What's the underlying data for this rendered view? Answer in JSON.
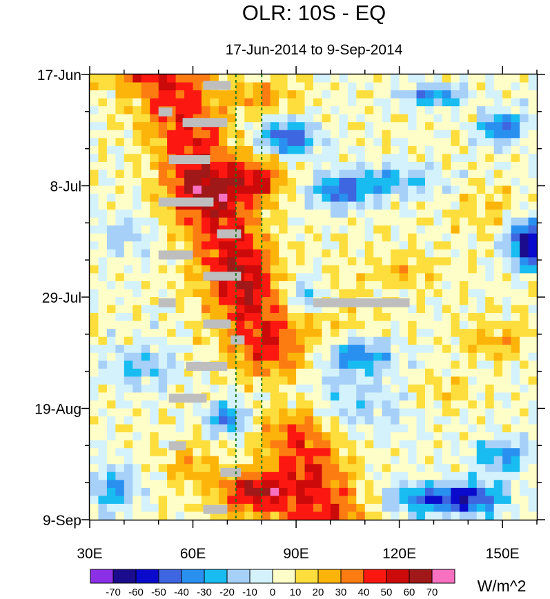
{
  "chart_data": {
    "type": "heatmap",
    "title": "OLR: 10S - EQ",
    "subtitle": "17-Jun-2014 to 9-Sep-2014",
    "x_axis": {
      "label": "",
      "range": [
        30,
        160
      ],
      "ticks": [
        30,
        60,
        90,
        120,
        150
      ],
      "tick_labels": [
        "30E",
        "60E",
        "90E",
        "120E",
        "150E"
      ],
      "minor_tick_step": 10
    },
    "y_axis": {
      "label": "",
      "range_days": [
        0,
        84
      ],
      "ticks": [
        0,
        21,
        42,
        63,
        84
      ],
      "tick_labels": [
        "17-Jun",
        "8-Jul",
        "29-Jul",
        "19-Aug",
        "9-Sep"
      ],
      "minor_tick_step_days": 7,
      "direction": "time increases downward"
    },
    "reference_lines_lon": [
      72.5,
      80
    ],
    "colorbar": {
      "units": "W/m^2",
      "boundaries": [
        -70,
        -60,
        -50,
        -40,
        -30,
        -20,
        -10,
        0,
        10,
        20,
        30,
        40,
        50,
        60,
        70
      ],
      "labels": [
        "-70",
        "-60",
        "-50",
        "-40",
        "-30",
        "-20",
        "-10",
        "0",
        "10",
        "20",
        "30",
        "40",
        "50",
        "60",
        "70"
      ],
      "colors": [
        "#8c30e8",
        "#1a0c8c",
        "#0a0acc",
        "#3e66e0",
        "#2a90f0",
        "#18bcf0",
        "#a6d0f8",
        "#d4f2fc",
        "#fefec8",
        "#fdde3c",
        "#fdb40a",
        "#fd7c12",
        "#fc1810",
        "#cc0a0a",
        "#a01818",
        "#f870c0"
      ]
    },
    "missing_data_color": "#bebebe",
    "missing_data_segments": [
      {
        "day": 2,
        "lon_start": 63,
        "lon_end": 71
      },
      {
        "day": 7,
        "lon_start": 50,
        "lon_end": 54
      },
      {
        "day": 9,
        "lon_start": 57,
        "lon_end": 70
      },
      {
        "day": 16,
        "lon_start": 53,
        "lon_end": 65
      },
      {
        "day": 24,
        "lon_start": 50,
        "lon_end": 66
      },
      {
        "day": 30,
        "lon_start": 67,
        "lon_end": 74
      },
      {
        "day": 34,
        "lon_start": 50,
        "lon_end": 60
      },
      {
        "day": 38,
        "lon_start": 63,
        "lon_end": 74
      },
      {
        "day": 43,
        "lon_start": 50,
        "lon_end": 55
      },
      {
        "day": 43,
        "lon_start": 95,
        "lon_end": 123
      },
      {
        "day": 47,
        "lon_start": 63,
        "lon_end": 71
      },
      {
        "day": 50,
        "lon_start": 71,
        "lon_end": 75
      },
      {
        "day": 55,
        "lon_start": 58,
        "lon_end": 70
      },
      {
        "day": 61,
        "lon_start": 53,
        "lon_end": 64
      },
      {
        "day": 70,
        "lon_start": 53,
        "lon_end": 58
      },
      {
        "day": 75,
        "lon_start": 68,
        "lon_end": 74
      },
      {
        "day": 82,
        "lon_start": 63,
        "lon_end": 70
      }
    ],
    "features": {
      "grid_lon_step": 5,
      "grid_day_step": 3,
      "anomaly_W_m2_qualitative": "positive (orange/red) OLR anomalies propagate eastward from ~55E to ~85E; strongest maxima near 75-85E around 8-Jul to 15-Jul and near 72-85E around 1-Sep to 5-Sep; negative (blue) anomalies dominate east of 90E, strongest near 80-85E in late June and near 130-155E in early September"
    }
  }
}
